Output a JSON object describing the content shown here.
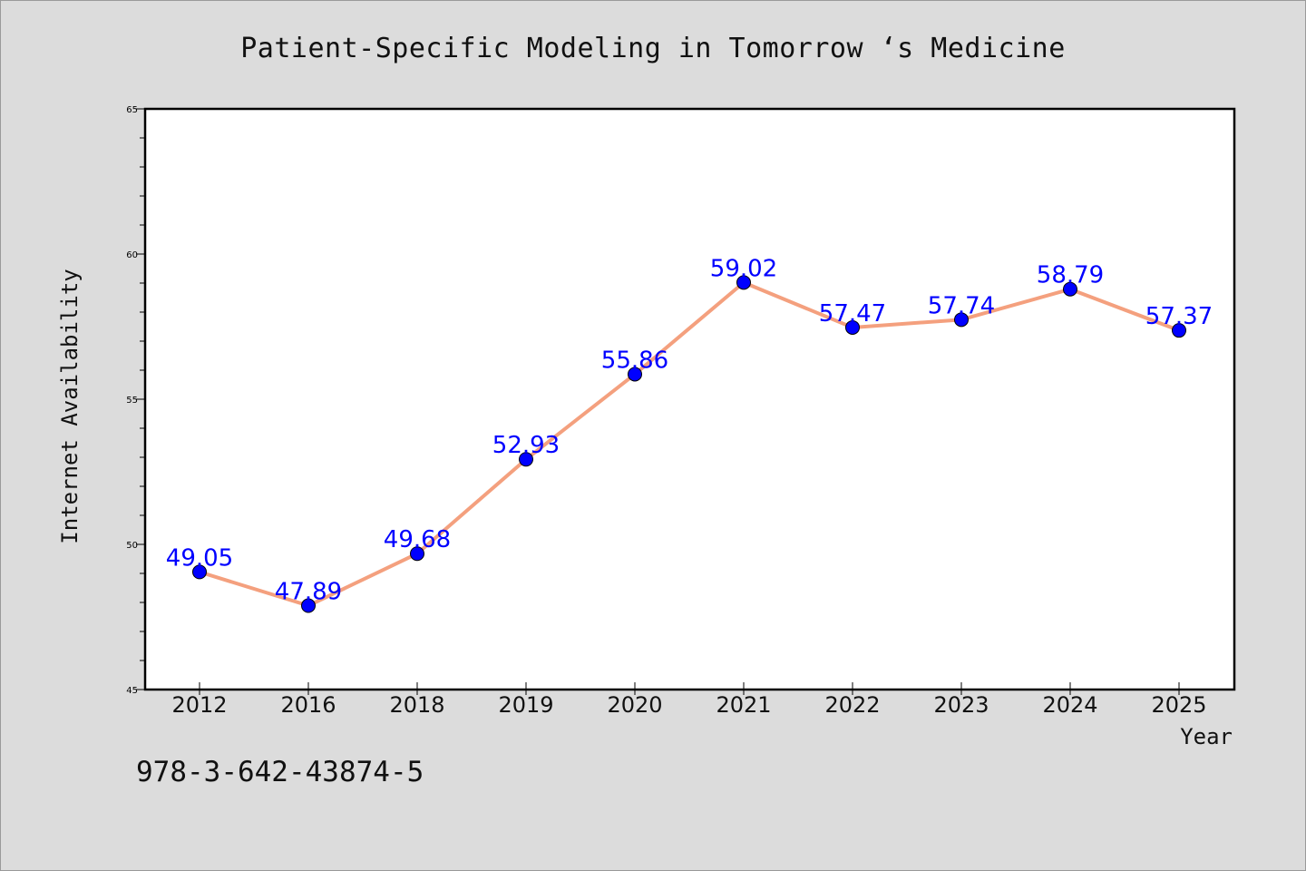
{
  "title": "Patient-Specific Modeling in Tomorrow ‘s Medicine",
  "footer": "978-3-642-43874-5",
  "colors": {
    "background": "#dcdcdc",
    "plot_background": "#ffffff",
    "line": "#f4a07e",
    "marker": "#0000ff",
    "label": "#0000ff"
  },
  "chart_data": {
    "type": "line",
    "title": "Patient-Specific Modeling in Tomorrow ‘s Medicine",
    "xlabel": "Year",
    "ylabel": "Internet Availability",
    "categories": [
      "2012",
      "2016",
      "2018",
      "2019",
      "2020",
      "2021",
      "2022",
      "2023",
      "2024",
      "2025"
    ],
    "values": [
      49.05,
      47.89,
      49.68,
      52.93,
      55.86,
      59.02,
      57.47,
      57.74,
      58.79,
      57.37
    ],
    "value_labels": [
      "49.05",
      "47.89",
      "49.68",
      "52.93",
      "55.86",
      "59.02",
      "57.47",
      "57.74",
      "58.79",
      "57.37"
    ],
    "ylim": [
      45,
      65
    ],
    "y_ticks": [
      "45",
      "50",
      "55",
      "60",
      "65"
    ],
    "grid": false,
    "legend": "none"
  }
}
